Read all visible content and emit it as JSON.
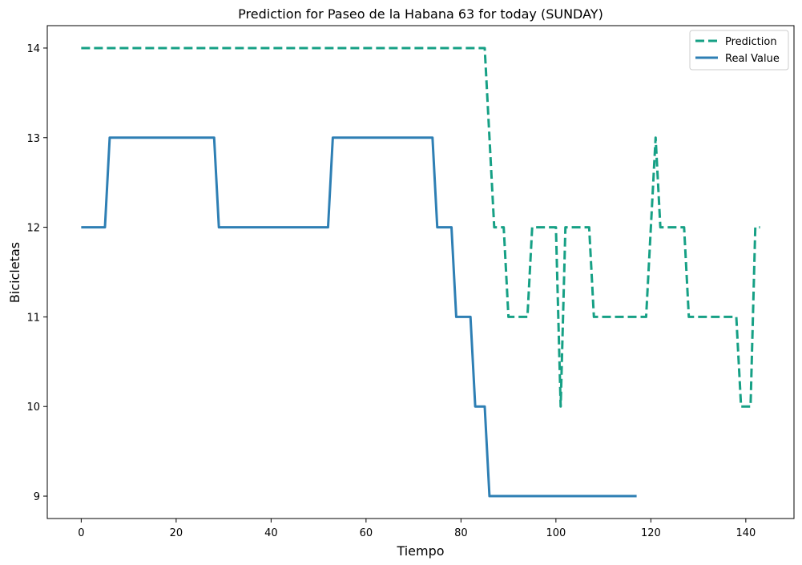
{
  "chart_data": {
    "type": "line",
    "title": "Prediction for Paseo de la Habana 63 for today (SUNDAY)",
    "xlabel": "Tiempo",
    "ylabel": "Bicicletas",
    "xlim": [
      -7.15,
      150.15
    ],
    "ylim": [
      8.75,
      14.25
    ],
    "xticks": [
      0,
      20,
      40,
      60,
      80,
      100,
      120,
      140
    ],
    "yticks": [
      9,
      10,
      11,
      12,
      13,
      14
    ],
    "grid": false,
    "legend_position": "top-right",
    "series": [
      {
        "name": "Prediction",
        "color": "#16a085",
        "style": "dashed",
        "points": [
          [
            0,
            14
          ],
          [
            85,
            14
          ],
          [
            87,
            12
          ],
          [
            89,
            12
          ],
          [
            90,
            11
          ],
          [
            94,
            11
          ],
          [
            95,
            12
          ],
          [
            100,
            12
          ],
          [
            101,
            10
          ],
          [
            102,
            12
          ],
          [
            107,
            12
          ],
          [
            108,
            11
          ],
          [
            119,
            11
          ],
          [
            121,
            13
          ],
          [
            122,
            12
          ],
          [
            127,
            12
          ],
          [
            128,
            11
          ],
          [
            138,
            11
          ],
          [
            139,
            10
          ],
          [
            141,
            10
          ],
          [
            142,
            12
          ],
          [
            143,
            12
          ]
        ]
      },
      {
        "name": "Real Value",
        "color": "#2e7fb4",
        "style": "solid",
        "points": [
          [
            0,
            12
          ],
          [
            5,
            12
          ],
          [
            6,
            13
          ],
          [
            28,
            13
          ],
          [
            29,
            12
          ],
          [
            52,
            12
          ],
          [
            53,
            13
          ],
          [
            74,
            13
          ],
          [
            75,
            12
          ],
          [
            78,
            12
          ],
          [
            79,
            11
          ],
          [
            82,
            11
          ],
          [
            83,
            10
          ],
          [
            85,
            10
          ],
          [
            86,
            9
          ],
          [
            117,
            9
          ]
        ]
      }
    ]
  }
}
